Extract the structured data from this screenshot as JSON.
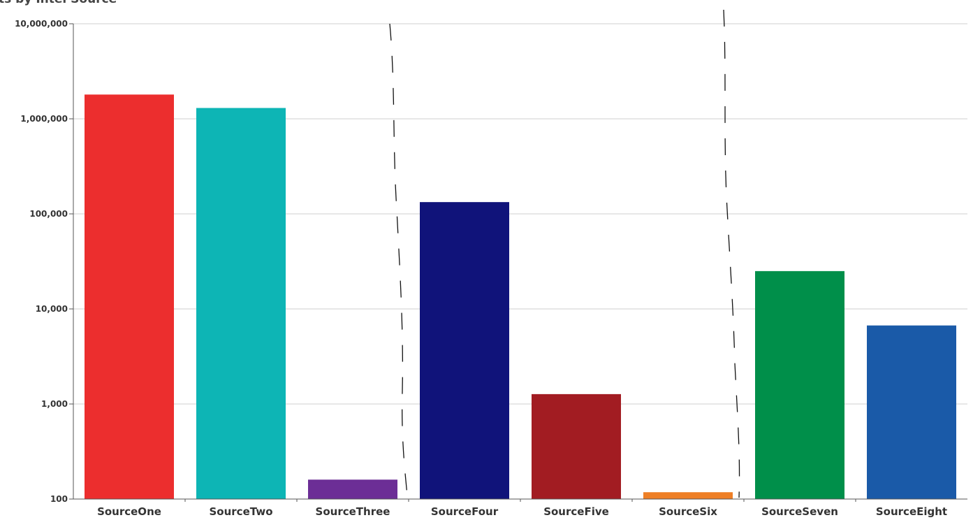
{
  "chart_data": {
    "type": "bar",
    "title": "ts by Intel Source",
    "xlabel": "",
    "ylabel": "",
    "yscale": "log",
    "ylim": [
      100,
      10000000
    ],
    "grid": true,
    "legend": "none",
    "ytick_values": [
      100,
      1000,
      10000,
      100000,
      1000000,
      10000000
    ],
    "ytick_labels": [
      "100",
      "1,000",
      "10,000",
      "100,000",
      "1,000,000",
      "10,000,000"
    ],
    "categories": [
      "SourceOne",
      "SourceTwo",
      "SourceThree",
      "SourceFour",
      "SourceFive",
      "SourceSix",
      "SourceSeven",
      "SourceEight"
    ],
    "values": [
      1800000,
      1300000,
      160,
      133000,
      1270,
      118,
      25000,
      6700
    ],
    "colors": [
      "#ec2e2e",
      "#0db5b5",
      "#6c2e96",
      "#10137a",
      "#a21c22",
      "#ee7f26",
      "#008f4a",
      "#1a5aa8"
    ]
  }
}
